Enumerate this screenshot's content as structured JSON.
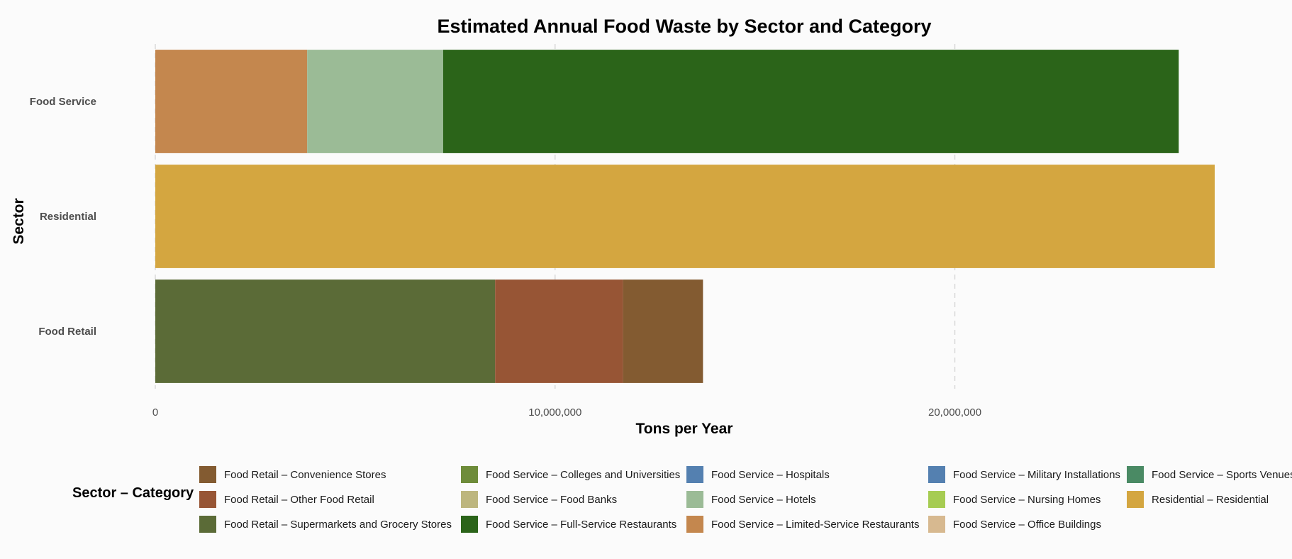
{
  "chart_data": {
    "type": "bar",
    "orientation": "horizontal",
    "stacked": true,
    "title": "Estimated Annual Food Waste by Sector and Category",
    "xlabel": "Tons per Year",
    "ylabel": "Sector",
    "xlim": [
      0,
      26500000
    ],
    "x_ticks": [
      0,
      10000000,
      20000000
    ],
    "x_tick_labels": [
      "0",
      "10,000,000",
      "20,000,000"
    ],
    "grid": "vertical dashed",
    "categories": [
      "Food Service",
      "Residential",
      "Food Retail"
    ],
    "series": [
      {
        "name": "Food Service – Limited-Service Restaurants",
        "color": "#c4874e",
        "values": [
          3800000,
          0,
          0
        ]
      },
      {
        "name": "Food Service – Hotels",
        "color": "#9bbb96",
        "values": [
          3400000,
          0,
          0
        ]
      },
      {
        "name": "Food Service – Full-Service Restaurants",
        "color": "#2b6419",
        "values": [
          18400000,
          0,
          0
        ]
      },
      {
        "name": "Residential – Residential",
        "color": "#d4a640",
        "values": [
          0,
          26500000,
          0
        ]
      },
      {
        "name": "Food Retail – Supermarkets and Grocery Stores",
        "color": "#5b6b37",
        "values": [
          0,
          0,
          8500000
        ]
      },
      {
        "name": "Food Retail – Other Food Retail",
        "color": "#975535",
        "values": [
          0,
          0,
          3200000
        ]
      },
      {
        "name": "Food Retail – Convenience Stores",
        "color": "#835b31",
        "values": [
          0,
          0,
          2000000
        ]
      }
    ],
    "legend_title": "Sector – Category",
    "legend_position": "bottom",
    "legend": [
      {
        "label": "Food Retail – Convenience Stores",
        "color": "#835b31"
      },
      {
        "label": "Food Retail – Other Food Retail",
        "color": "#975535"
      },
      {
        "label": "Food Retail – Supermarkets and Grocery Stores",
        "color": "#5b6b37"
      },
      {
        "label": "Food Service – Colleges and Universities",
        "color": "#6e8c3a"
      },
      {
        "label": "Food Service – Food Banks",
        "color": "#bdb67e"
      },
      {
        "label": "Food Service – Full-Service Restaurants",
        "color": "#2b6419"
      },
      {
        "label": "Food Service – Hospitals",
        "color": "#5480b0"
      },
      {
        "label": "Food Service – Hotels",
        "color": "#9bbb96"
      },
      {
        "label": "Food Service – Limited-Service Restaurants",
        "color": "#c4874e"
      },
      {
        "label": "Food Service – Military Installations",
        "color": "#5480b0"
      },
      {
        "label": "Food Service – Nursing Homes",
        "color": "#a6cc52"
      },
      {
        "label": "Food Service – Office Buildings",
        "color": "#d7b990"
      },
      {
        "label": "Food Service – Sports Venues",
        "color": "#4a8a64"
      },
      {
        "label": "Residential – Residential",
        "color": "#d4a640"
      }
    ]
  }
}
